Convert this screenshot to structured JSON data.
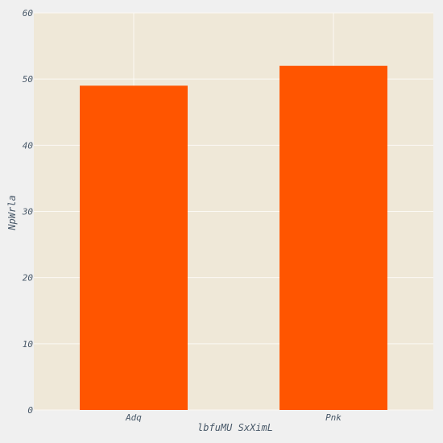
{
  "chart_data": {
    "type": "bar",
    "title": "",
    "categories": [
      "Adq",
      "Pnk"
    ],
    "values": [
      49,
      52
    ],
    "xlabel": "lbfuMU SxXimL",
    "ylabel": "NpWrla",
    "ylim": [
      0,
      60
    ],
    "yticks": [
      "0",
      "10",
      "20",
      "30",
      "40",
      "50",
      "60"
    ],
    "grid": true,
    "colors": {
      "bar": "#ff5500",
      "plot_background": "#efe8d8",
      "page_background": "#f0f0f0",
      "gridline": "#fbf9f4",
      "text": "#4a5a6a"
    }
  }
}
